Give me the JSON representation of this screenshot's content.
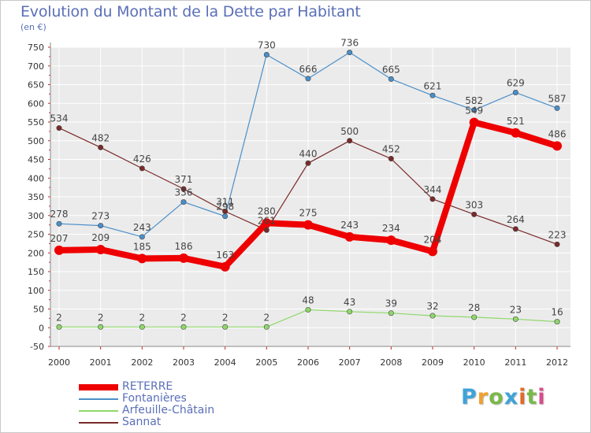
{
  "title": "Evolution du Montant de la Dette par Habitant",
  "unit_label": "(en €)",
  "logo": {
    "letters": [
      "P",
      "r",
      "o",
      "x",
      "i",
      "t",
      "i"
    ],
    "colors": [
      "#3ea3d9",
      "#f0a030",
      "#7ab84a",
      "#3ea3d9",
      "#e06a2a",
      "#7ab84a",
      "#d94b8a"
    ]
  },
  "chart_data": {
    "type": "line",
    "x": [
      "2000",
      "2001",
      "2002",
      "2003",
      "2004",
      "2005",
      "2006",
      "2007",
      "2008",
      "2009",
      "2010",
      "2011",
      "2012"
    ],
    "ylim": [
      -50,
      750
    ],
    "y_ticks": [
      "-50",
      "0",
      "50",
      "100",
      "150",
      "200",
      "250",
      "300",
      "350",
      "400",
      "450",
      "500",
      "550",
      "600",
      "650",
      "700",
      "750"
    ],
    "grid": true,
    "legend_position": "bottom-left",
    "series": [
      {
        "name": "RETERRE",
        "color": "#ee0000",
        "values": [
          207,
          209,
          185,
          186,
          163,
          280,
          275,
          243,
          234,
          204,
          549,
          521,
          486
        ],
        "labels": [
          "207",
          "209",
          "185",
          "186",
          "163",
          "280",
          "275",
          "243",
          "234",
          "204",
          "549",
          "521",
          "486"
        ]
      },
      {
        "name": "Fontanières",
        "color": "#4a8fc9",
        "values": [
          278,
          273,
          243,
          336,
          298,
          730,
          666,
          736,
          665,
          621,
          582,
          629,
          587
        ],
        "labels": [
          "278",
          "273",
          "243",
          "336",
          "298",
          "730",
          "666",
          "736",
          "665",
          "621",
          "582",
          "629",
          "587"
        ]
      },
      {
        "name": "Arfeuille-Châtain",
        "color": "#8fd86a",
        "values": [
          2,
          2,
          2,
          2,
          2,
          2,
          48,
          43,
          39,
          32,
          28,
          23,
          16
        ],
        "labels": [
          "2",
          "2",
          "2",
          "2",
          "2",
          "2",
          "48",
          "43",
          "39",
          "32",
          "28",
          "23",
          "16"
        ]
      },
      {
        "name": "Sannat",
        "color": "#7a2a2a",
        "values": [
          534,
          482,
          426,
          371,
          311,
          261,
          440,
          500,
          452,
          344,
          303,
          264,
          223
        ],
        "labels": [
          "534",
          "482",
          "426",
          "371",
          "311",
          "261",
          "440",
          "500",
          "452",
          "344",
          "303",
          "264",
          "223"
        ]
      }
    ]
  }
}
